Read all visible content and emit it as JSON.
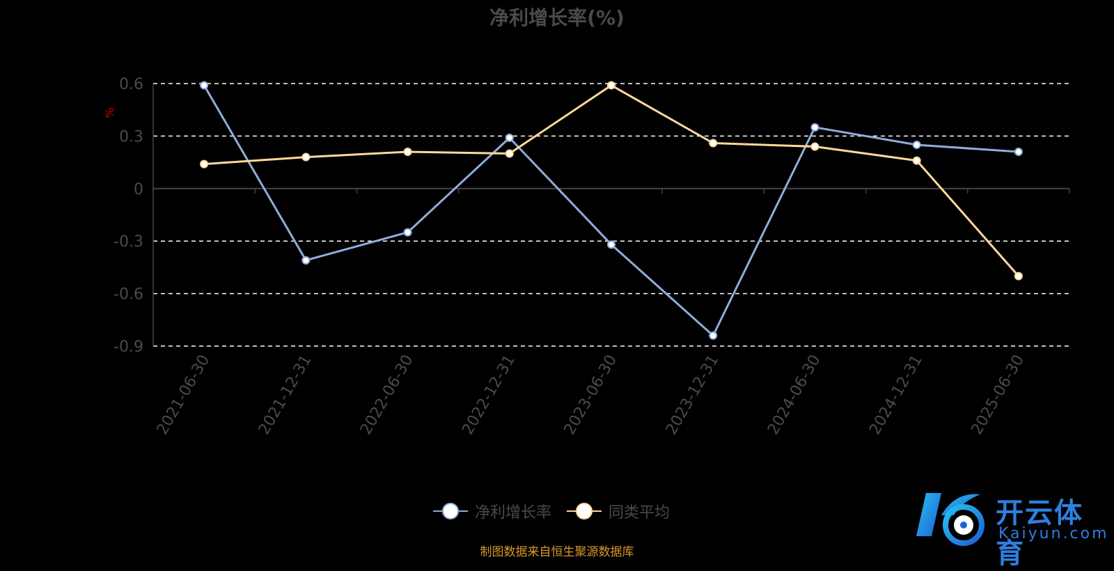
{
  "chart_data": {
    "type": "line",
    "title": "净利增长率(%)",
    "ylabel": "%",
    "categories": [
      "2021-06-30",
      "2021-12-31",
      "2022-06-30",
      "2022-12-31",
      "2023-06-30",
      "2023-12-31",
      "2024-06-30",
      "2024-12-31",
      "2025-06-30"
    ],
    "yticks": [
      "0.6",
      "0.3",
      "0",
      "-0.3",
      "-0.6",
      "-0.9"
    ],
    "ylim": [
      -0.9,
      0.6
    ],
    "grid": true,
    "legend_position": "bottom",
    "series": [
      {
        "name": "净利增长率",
        "color": "#8fadd9",
        "values": [
          0.59,
          -0.41,
          -0.25,
          0.29,
          -0.32,
          -0.84,
          0.35,
          0.25,
          0.21
        ]
      },
      {
        "name": "同类平均",
        "color": "#ffd99a",
        "values": [
          0.14,
          0.18,
          0.21,
          0.2,
          0.59,
          0.26,
          0.24,
          0.16,
          -0.5
        ]
      }
    ]
  },
  "legend": {
    "items": [
      "净利增长率",
      "同类平均"
    ]
  },
  "footer": {
    "source": "制图数据来自恒生聚源数据库"
  },
  "watermark": {
    "brand_cn": "开云体育",
    "brand_en": "Kaiyun.com"
  },
  "colors": {
    "background": "#000000",
    "axis_text": "#4a4a4a",
    "ylabel": "#cc0000",
    "grid": "#ffffff",
    "footer": "#d89a2a"
  }
}
